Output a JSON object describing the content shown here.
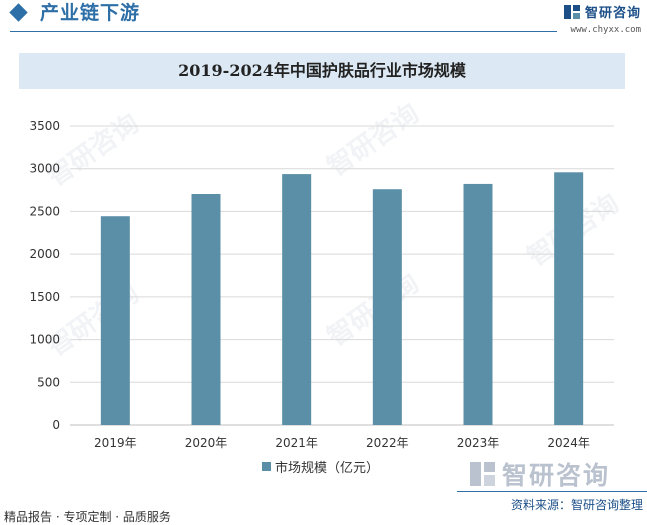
{
  "header": {
    "section_title": "产业链下游",
    "brand_name": "智研咨询",
    "brand_url": "www.chyxx.com"
  },
  "watermark_text": "智研咨询",
  "chart_data": {
    "type": "bar",
    "title": "2019-2024年中国护肤品行业市场规模",
    "categories": [
      "2019年",
      "2020年",
      "2021年",
      "2022年",
      "2023年",
      "2024年"
    ],
    "series": [
      {
        "name": "市场规模（亿元）",
        "values": [
          2444,
          2704,
          2937,
          2760,
          2822,
          2958
        ]
      }
    ],
    "ylim": [
      0,
      3500
    ],
    "yticks": [
      0,
      500,
      1000,
      1500,
      2000,
      2500,
      3000,
      3500
    ],
    "grid": true,
    "legend_position": "bottom",
    "bar_color": "#5b8fa8"
  },
  "footer": {
    "left": "精品报告 · 专项定制 · 品质服务",
    "right": "资料来源：智研咨询整理"
  }
}
